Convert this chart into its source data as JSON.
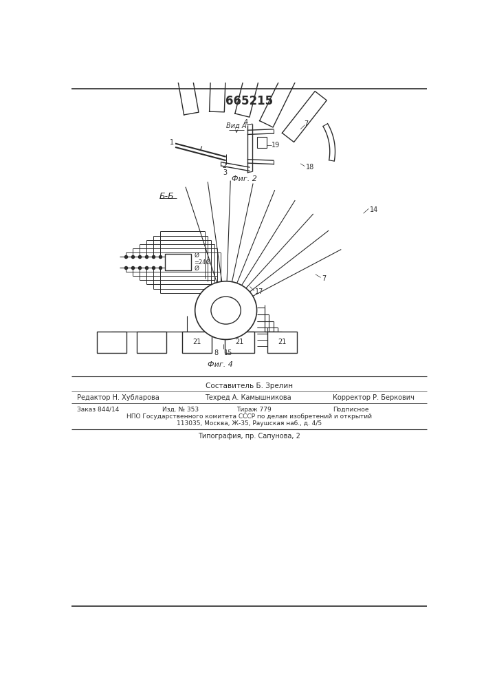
{
  "patent_number": "665215",
  "bg_color": "#ffffff",
  "line_color": "#2a2a2a",
  "fig2_label": "Фиг. 2",
  "fig4_label": "Фиг. 4",
  "section_label": "Б-Б",
  "view_label": "Вид А",
  "composer": "Составитель Б. Зрелин",
  "editor": "Редактор Н. Хубларова",
  "techred": "Техред А. Камышникова",
  "corrector": "Корректор Р. Беркович",
  "order": "Заказ 844/14",
  "izd": "Изд. № 353",
  "tirazh": "Тираж 779",
  "podpisnoe": "Подписное",
  "npo_line": "НПО Государственного комитета СССР по делам изобретений и открытий",
  "address": "113035, Москва, Ж-35, Раушская наб., д. 4/5",
  "tipografia": "Типография, пр. Сапунова, 2"
}
